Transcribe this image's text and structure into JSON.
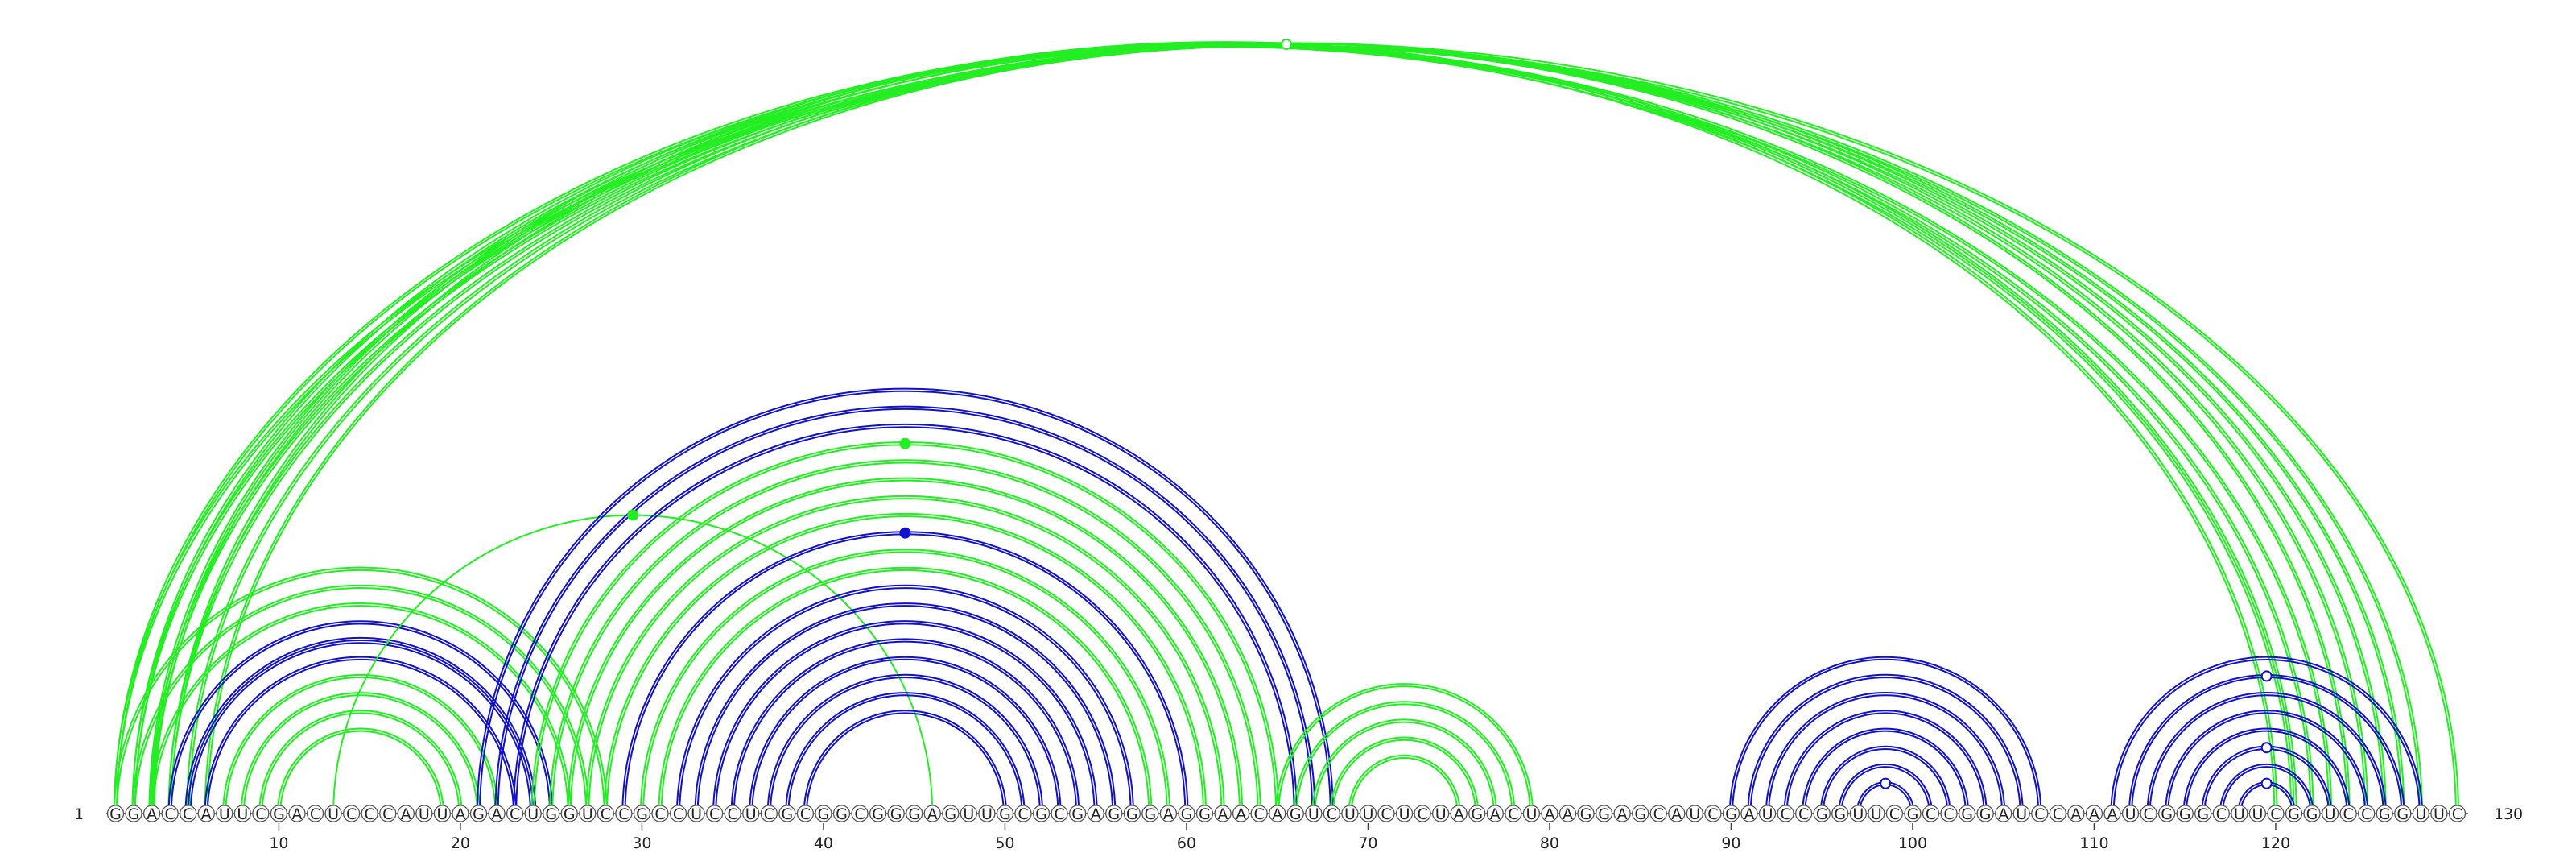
{
  "sequence": "GGACCAUUCGACUCCCAUUAGACUGGUCCGCCUCCUCGCGGCGGGAGUUGCGCGAGGGAGGAACAGUCUUCUCUAGACUAAGGAGCAUCGAUCCGGUUCGCCGGAUCCAAAUCGGGCUUCGGUCCGGUUC",
  "start_label": "1",
  "end_label": "130",
  "axis_ticks": [
    "10",
    "20",
    "30",
    "40",
    "50",
    "60",
    "70",
    "80",
    "90",
    "100",
    "110",
    "120"
  ],
  "colors": {
    "green": "#22ee22",
    "blue": "#1111cc",
    "outline": "#444444"
  },
  "arcs": [
    {
      "from": 1,
      "to": 123,
      "color": "green",
      "lines": 2
    },
    {
      "from": 2,
      "to": 122,
      "color": "green",
      "lines": 2
    },
    {
      "from": 3,
      "to": 121,
      "color": "green",
      "lines": 3
    },
    {
      "from": 4,
      "to": 120,
      "color": "green",
      "lines": 2
    },
    {
      "from": 1,
      "to": 130,
      "color": "green",
      "lines": 2,
      "marker": "open"
    },
    {
      "from": 2,
      "to": 128,
      "color": "green",
      "lines": 2
    },
    {
      "from": 3,
      "to": 127,
      "color": "green",
      "lines": 2
    },
    {
      "from": 4,
      "to": 126,
      "color": "green",
      "lines": 2
    },
    {
      "from": 5,
      "to": 125,
      "color": "green",
      "lines": 2
    },
    {
      "from": 6,
      "to": 124,
      "color": "green",
      "lines": 2
    },
    {
      "from": 1,
      "to": 28,
      "color": "green",
      "lines": 2
    },
    {
      "from": 2,
      "to": 27,
      "color": "green",
      "lines": 2
    },
    {
      "from": 3,
      "to": 26,
      "color": "green",
      "lines": 2
    },
    {
      "from": 4,
      "to": 25,
      "color": "blue",
      "lines": 2
    },
    {
      "from": 5,
      "to": 24,
      "color": "blue",
      "lines": 3
    },
    {
      "from": 6,
      "to": 23,
      "color": "blue",
      "lines": 2
    },
    {
      "from": 7,
      "to": 22,
      "color": "green",
      "lines": 2
    },
    {
      "from": 8,
      "to": 21,
      "color": "green",
      "lines": 2
    },
    {
      "from": 9,
      "to": 20,
      "color": "green",
      "lines": 2
    },
    {
      "from": 10,
      "to": 19,
      "color": "green",
      "lines": 2
    },
    {
      "from": 13,
      "to": 46,
      "color": "green",
      "lines": 1,
      "marker": "filled"
    },
    {
      "from": 21,
      "to": 68,
      "color": "blue",
      "lines": 2
    },
    {
      "from": 22,
      "to": 67,
      "color": "blue",
      "lines": 2
    },
    {
      "from": 23,
      "to": 66,
      "color": "blue",
      "lines": 2
    },
    {
      "from": 24,
      "to": 65,
      "color": "green",
      "lines": 2,
      "marker": "filled"
    },
    {
      "from": 25,
      "to": 64,
      "color": "green",
      "lines": 2
    },
    {
      "from": 26,
      "to": 63,
      "color": "green",
      "lines": 2
    },
    {
      "from": 27,
      "to": 62,
      "color": "green",
      "lines": 2
    },
    {
      "from": 28,
      "to": 61,
      "color": "green",
      "lines": 2
    },
    {
      "from": 29,
      "to": 60,
      "color": "blue",
      "lines": 2,
      "marker": "filled"
    },
    {
      "from": 30,
      "to": 59,
      "color": "green",
      "lines": 2
    },
    {
      "from": 31,
      "to": 58,
      "color": "green",
      "lines": 2
    },
    {
      "from": 32,
      "to": 57,
      "color": "blue",
      "lines": 2
    },
    {
      "from": 33,
      "to": 56,
      "color": "blue",
      "lines": 2
    },
    {
      "from": 34,
      "to": 55,
      "color": "blue",
      "lines": 2
    },
    {
      "from": 35,
      "to": 54,
      "color": "blue",
      "lines": 2
    },
    {
      "from": 36,
      "to": 53,
      "color": "blue",
      "lines": 2
    },
    {
      "from": 37,
      "to": 52,
      "color": "blue",
      "lines": 2
    },
    {
      "from": 38,
      "to": 51,
      "color": "blue",
      "lines": 2
    },
    {
      "from": 39,
      "to": 50,
      "color": "blue",
      "lines": 2
    },
    {
      "from": 65,
      "to": 79,
      "color": "green",
      "lines": 2
    },
    {
      "from": 66,
      "to": 78,
      "color": "green",
      "lines": 2
    },
    {
      "from": 67,
      "to": 77,
      "color": "green",
      "lines": 2
    },
    {
      "from": 68,
      "to": 76,
      "color": "green",
      "lines": 2
    },
    {
      "from": 69,
      "to": 75,
      "color": "green",
      "lines": 2
    },
    {
      "from": 90,
      "to": 107,
      "color": "blue",
      "lines": 2
    },
    {
      "from": 91,
      "to": 106,
      "color": "blue",
      "lines": 2
    },
    {
      "from": 92,
      "to": 105,
      "color": "blue",
      "lines": 2
    },
    {
      "from": 93,
      "to": 104,
      "color": "blue",
      "lines": 2
    },
    {
      "from": 94,
      "to": 103,
      "color": "blue",
      "lines": 2
    },
    {
      "from": 95,
      "to": 102,
      "color": "blue",
      "lines": 2
    },
    {
      "from": 96,
      "to": 101,
      "color": "blue",
      "lines": 2
    },
    {
      "from": 97,
      "to": 100,
      "color": "blue",
      "lines": 2,
      "marker": "open"
    },
    {
      "from": 111,
      "to": 128,
      "color": "blue",
      "lines": 2
    },
    {
      "from": 112,
      "to": 127,
      "color": "blue",
      "lines": 2,
      "marker": "open"
    },
    {
      "from": 113,
      "to": 126,
      "color": "blue",
      "lines": 2
    },
    {
      "from": 114,
      "to": 125,
      "color": "blue",
      "lines": 2
    },
    {
      "from": 115,
      "to": 124,
      "color": "blue",
      "lines": 2
    },
    {
      "from": 116,
      "to": 123,
      "color": "blue",
      "lines": 2,
      "marker": "open"
    },
    {
      "from": 117,
      "to": 122,
      "color": "blue",
      "lines": 2
    },
    {
      "from": 118,
      "to": 121,
      "color": "blue",
      "lines": 2,
      "marker": "open"
    }
  ]
}
